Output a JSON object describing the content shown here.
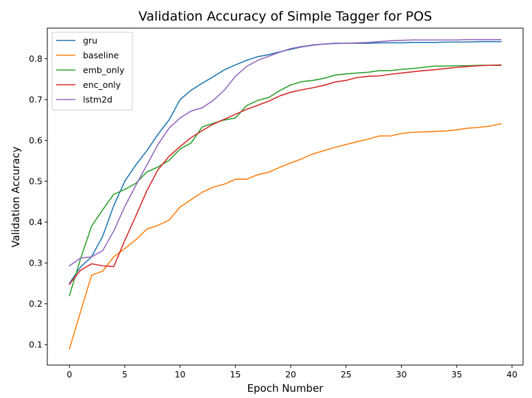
{
  "chart_data": {
    "type": "line",
    "title": "Validation Accuracy of Simple Tagger for POS",
    "xlabel": "Epoch Number",
    "ylabel": "Validation Accuracy",
    "xlim": [
      -2,
      41
    ],
    "ylim": [
      0.05,
      0.875
    ],
    "xticks": [
      0,
      5,
      10,
      15,
      20,
      25,
      30,
      35,
      40
    ],
    "yticks": [
      0.1,
      0.2,
      0.3,
      0.4,
      0.5,
      0.6,
      0.7,
      0.8
    ],
    "grid": false,
    "legend_position": "top-left",
    "x": [
      0,
      1,
      2,
      3,
      4,
      5,
      6,
      7,
      8,
      9,
      10,
      11,
      12,
      13,
      14,
      15,
      16,
      17,
      18,
      19,
      20,
      21,
      22,
      23,
      24,
      25,
      26,
      27,
      28,
      29,
      30,
      31,
      32,
      33,
      34,
      35,
      36,
      37,
      38,
      39
    ],
    "series": [
      {
        "name": "gru",
        "color": "#1f77b4",
        "values": [
          0.25,
          0.29,
          0.315,
          0.365,
          0.44,
          0.5,
          0.54,
          0.575,
          0.615,
          0.65,
          0.7,
          0.723,
          0.74,
          0.756,
          0.773,
          0.785,
          0.796,
          0.805,
          0.81,
          0.817,
          0.823,
          0.829,
          0.833,
          0.836,
          0.838,
          0.838,
          0.838,
          0.838,
          0.839,
          0.839,
          0.839,
          0.84,
          0.84,
          0.84,
          0.841,
          0.841,
          0.841,
          0.842,
          0.842,
          0.842
        ]
      },
      {
        "name": "baseline",
        "color": "#ff7f0e",
        "values": [
          0.09,
          0.18,
          0.27,
          0.28,
          0.315,
          0.335,
          0.357,
          0.383,
          0.392,
          0.405,
          0.437,
          0.455,
          0.473,
          0.486,
          0.493,
          0.505,
          0.505,
          0.516,
          0.522,
          0.534,
          0.545,
          0.555,
          0.567,
          0.575,
          0.583,
          0.59,
          0.597,
          0.603,
          0.611,
          0.611,
          0.617,
          0.62,
          0.621,
          0.622,
          0.623,
          0.626,
          0.63,
          0.632,
          0.635,
          0.641
        ]
      },
      {
        "name": "emb_only",
        "color": "#2ca02c",
        "values": [
          0.22,
          0.31,
          0.39,
          0.43,
          0.468,
          0.48,
          0.495,
          0.523,
          0.535,
          0.551,
          0.579,
          0.594,
          0.633,
          0.642,
          0.65,
          0.655,
          0.685,
          0.698,
          0.705,
          0.722,
          0.736,
          0.744,
          0.747,
          0.752,
          0.76,
          0.763,
          0.765,
          0.767,
          0.771,
          0.771,
          0.774,
          0.776,
          0.779,
          0.782,
          0.782,
          0.783,
          0.783,
          0.784,
          0.784,
          0.785
        ]
      },
      {
        "name": "enc_only",
        "color": "#d62728",
        "values": [
          0.248,
          0.282,
          0.298,
          0.293,
          0.291,
          0.355,
          0.415,
          0.477,
          0.528,
          0.561,
          0.585,
          0.607,
          0.624,
          0.64,
          0.652,
          0.664,
          0.676,
          0.686,
          0.696,
          0.709,
          0.718,
          0.724,
          0.729,
          0.735,
          0.743,
          0.747,
          0.754,
          0.757,
          0.758,
          0.762,
          0.765,
          0.768,
          0.771,
          0.773,
          0.776,
          0.779,
          0.781,
          0.783,
          0.784,
          0.784
        ]
      },
      {
        "name": "lstm2d",
        "color": "#9467bd",
        "values": [
          0.293,
          0.312,
          0.315,
          0.33,
          0.378,
          0.438,
          0.49,
          0.54,
          0.59,
          0.63,
          0.655,
          0.672,
          0.68,
          0.698,
          0.723,
          0.757,
          0.781,
          0.796,
          0.806,
          0.816,
          0.825,
          0.83,
          0.834,
          0.836,
          0.837,
          0.838,
          0.839,
          0.84,
          0.842,
          0.844,
          0.845,
          0.846,
          0.846,
          0.846,
          0.846,
          0.846,
          0.847,
          0.847,
          0.847,
          0.847
        ]
      }
    ]
  }
}
